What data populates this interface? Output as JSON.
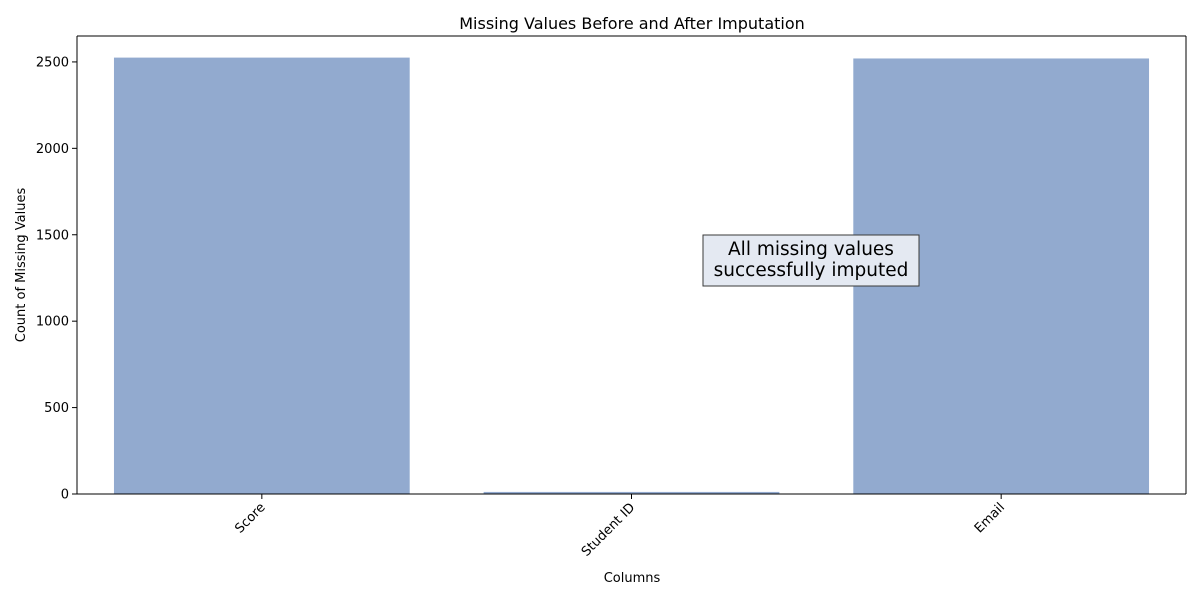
{
  "chart_data": {
    "type": "bar",
    "title": "Missing Values Before and After Imputation",
    "xlabel": "Columns",
    "ylabel": "Count of Missing Values",
    "categories": [
      "Score",
      "Student ID",
      "Email"
    ],
    "values": [
      2525,
      12,
      2520
    ],
    "ylim": [
      0,
      2650
    ],
    "yticks": [
      0,
      500,
      1000,
      1500,
      2000,
      2500
    ],
    "bar_color": "#92aacf",
    "grid": false,
    "annotation": {
      "lines": [
        "All missing values",
        "successfully imputed"
      ],
      "box_fill": "#e4e9f2",
      "box_edge": "#3a3a3a"
    }
  }
}
